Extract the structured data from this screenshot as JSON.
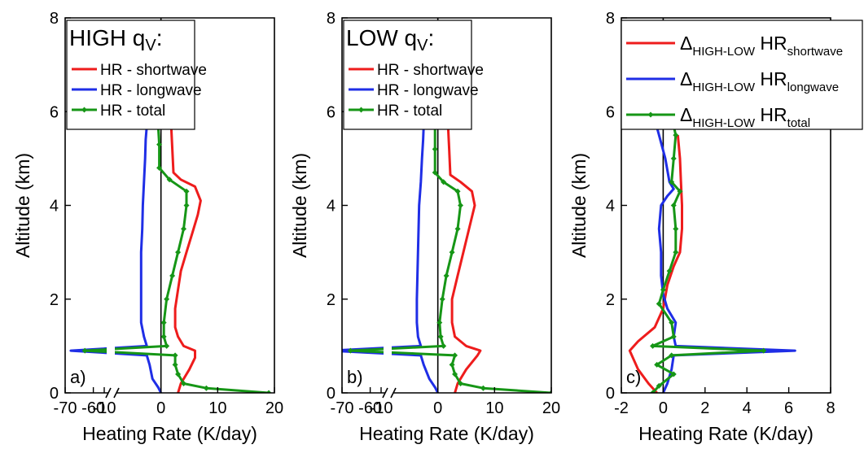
{
  "colors": {
    "shortwave": "#ee1c1c",
    "longwave": "#1f2ee6",
    "total": "#169616",
    "zero_line": "#000000"
  },
  "chart_data": [
    {
      "type": "line",
      "panel_label": "a)",
      "legend_title_main": "HIGH q",
      "legend_title_sub": "V",
      "legend_title_suffix": ":",
      "legend_title_color": "#1f2ee6",
      "legend_position": "top-left",
      "xlabel": "Heating Rate (K/day)",
      "ylabel": "Altitude (km)",
      "xlim": [
        -70,
        20
      ],
      "x_axis_break": [
        -57,
        -10
      ],
      "ylim": [
        0,
        8
      ],
      "xtick_labels": [
        "-70",
        "-60",
        "-10",
        "0",
        "10",
        "20"
      ],
      "ytick_labels": [
        "0",
        "2",
        "4",
        "6",
        "8"
      ],
      "grid": false,
      "series": [
        {
          "name": "HR - shortwave",
          "color": "#ee1c1c",
          "markers": false,
          "points": [
            [
              3,
              0
            ],
            [
              3.5,
              0.2
            ],
            [
              5,
              0.5
            ],
            [
              6,
              0.75
            ],
            [
              6,
              0.9
            ],
            [
              4,
              1.0
            ],
            [
              3,
              1.2
            ],
            [
              2.5,
              1.4
            ],
            [
              2.5,
              1.8
            ],
            [
              3,
              2.2
            ],
            [
              3.5,
              2.6
            ],
            [
              4.5,
              3.0
            ],
            [
              5.5,
              3.4
            ],
            [
              6.5,
              3.8
            ],
            [
              7,
              4.1
            ],
            [
              6,
              4.4
            ],
            [
              3.5,
              4.55
            ],
            [
              2.2,
              4.7
            ],
            [
              2,
              5.2
            ],
            [
              1.8,
              5.7
            ]
          ]
        },
        {
          "name": "HR - longwave",
          "color": "#1f2ee6",
          "markers": false,
          "points": [
            [
              0,
              0
            ],
            [
              -0.5,
              0.12
            ],
            [
              -1.5,
              0.3
            ],
            [
              -2,
              0.6
            ],
            [
              -2.5,
              0.8
            ],
            [
              -68,
              0.9
            ],
            [
              -2.5,
              1.0
            ],
            [
              -3,
              1.2
            ],
            [
              -3.5,
              1.5
            ],
            [
              -3.5,
              2.0
            ],
            [
              -3.5,
              2.5
            ],
            [
              -3.5,
              3.0
            ],
            [
              -3.3,
              3.5
            ],
            [
              -3.2,
              4.0
            ],
            [
              -3,
              4.5
            ],
            [
              -2.8,
              5.0
            ],
            [
              -2.7,
              5.4
            ],
            [
              -2.5,
              5.7
            ]
          ]
        },
        {
          "name": "HR - total",
          "color": "#169616",
          "markers": true,
          "points": [
            [
              19,
              0
            ],
            [
              8,
              0.1
            ],
            [
              4,
              0.2
            ],
            [
              3,
              0.4
            ],
            [
              2.5,
              0.6
            ],
            [
              2.5,
              0.8
            ],
            [
              -63,
              0.9
            ],
            [
              1,
              1.0
            ],
            [
              0.5,
              1.2
            ],
            [
              0.5,
              1.5
            ],
            [
              1,
              2.0
            ],
            [
              2,
              2.5
            ],
            [
              3,
              3.0
            ],
            [
              4,
              3.5
            ],
            [
              4.5,
              4.0
            ],
            [
              4.5,
              4.3
            ],
            [
              1.5,
              4.55
            ],
            [
              -0.3,
              4.8
            ],
            [
              -0.3,
              5.3
            ],
            [
              -0.5,
              5.7
            ]
          ]
        }
      ]
    },
    {
      "type": "line",
      "panel_label": "b)",
      "legend_title_main": "LOW q",
      "legend_title_sub": "V",
      "legend_title_suffix": ":",
      "legend_title_color": "#ee1c1c",
      "legend_position": "top-left",
      "xlabel": "Heating Rate (K/day)",
      "ylabel": "Altitude (km)",
      "xlim": [
        -70,
        20
      ],
      "x_axis_break": [
        -57,
        -10
      ],
      "ylim": [
        0,
        8
      ],
      "xtick_labels": [
        "-70",
        "-60",
        "-10",
        "0",
        "10",
        "20"
      ],
      "ytick_labels": [
        "0",
        "2",
        "4",
        "6",
        "8"
      ],
      "grid": false,
      "series": [
        {
          "name": "HR - shortwave",
          "color": "#ee1c1c",
          "markers": false,
          "points": [
            [
              3,
              0
            ],
            [
              3.5,
              0.2
            ],
            [
              5,
              0.5
            ],
            [
              7,
              0.8
            ],
            [
              7.5,
              0.9
            ],
            [
              5,
              1.0
            ],
            [
              3,
              1.2
            ],
            [
              2.5,
              1.5
            ],
            [
              2.5,
              2.0
            ],
            [
              3.5,
              2.5
            ],
            [
              4.5,
              3.0
            ],
            [
              5.5,
              3.5
            ],
            [
              6.5,
              4.0
            ],
            [
              6,
              4.3
            ],
            [
              4,
              4.5
            ],
            [
              2.2,
              4.65
            ],
            [
              2,
              5.2
            ],
            [
              1.8,
              5.7
            ]
          ]
        },
        {
          "name": "HR - longwave",
          "color": "#1f2ee6",
          "markers": false,
          "points": [
            [
              0,
              0
            ],
            [
              -0.5,
              0.12
            ],
            [
              -1.5,
              0.3
            ],
            [
              -2.5,
              0.6
            ],
            [
              -3,
              0.8
            ],
            [
              -74,
              0.9
            ],
            [
              -3,
              1.0
            ],
            [
              -3.5,
              1.2
            ],
            [
              -3.7,
              1.5
            ],
            [
              -3.7,
              2.0
            ],
            [
              -3.6,
              2.5
            ],
            [
              -3.5,
              3.0
            ],
            [
              -3.4,
              3.5
            ],
            [
              -3.3,
              4.0
            ],
            [
              -3,
              4.5
            ],
            [
              -2.8,
              5.0
            ],
            [
              -2.6,
              5.4
            ],
            [
              -2.5,
              5.7
            ]
          ]
        },
        {
          "name": "HR - total",
          "color": "#169616",
          "markers": true,
          "points": [
            [
              20,
              0
            ],
            [
              8,
              0.1
            ],
            [
              4,
              0.2
            ],
            [
              3,
              0.4
            ],
            [
              2.5,
              0.6
            ],
            [
              3,
              0.8
            ],
            [
              -67,
              0.9
            ],
            [
              1,
              1.0
            ],
            [
              0.5,
              1.2
            ],
            [
              0.3,
              1.5
            ],
            [
              0.8,
              2.0
            ],
            [
              1.5,
              2.5
            ],
            [
              2.5,
              3.0
            ],
            [
              3.5,
              3.5
            ],
            [
              4,
              4.0
            ],
            [
              3.5,
              4.3
            ],
            [
              1,
              4.5
            ],
            [
              -0.5,
              4.7
            ],
            [
              -0.5,
              5.2
            ],
            [
              -0.5,
              5.7
            ]
          ]
        }
      ]
    },
    {
      "type": "line",
      "panel_label": "c)",
      "legend_position": "top-right",
      "legend_prefix": "Δ",
      "legend_sub": "HIGH-LOW",
      "legend_main": "HR",
      "xlabel": "Heating Rate (K/day)",
      "ylabel": "Altitude (km)",
      "xlim": [
        -2,
        8
      ],
      "ylim": [
        0,
        8
      ],
      "xtick_labels": [
        "-2",
        "0",
        "2",
        "4",
        "6",
        "8"
      ],
      "ytick_labels": [
        "0",
        "2",
        "4",
        "6",
        "8"
      ],
      "grid": false,
      "series": [
        {
          "name": "shortwave",
          "color": "#ee1c1c",
          "markers": false,
          "points": [
            [
              -0.3,
              0
            ],
            [
              -0.7,
              0.2
            ],
            [
              -1.2,
              0.5
            ],
            [
              -1.6,
              0.9
            ],
            [
              -1.2,
              1.1
            ],
            [
              -0.4,
              1.4
            ],
            [
              0,
              1.8
            ],
            [
              0.2,
              2.3
            ],
            [
              0.5,
              2.7
            ],
            [
              0.8,
              3.0
            ],
            [
              0.9,
              3.5
            ],
            [
              0.9,
              4.0
            ],
            [
              0.85,
              4.5
            ],
            [
              0.8,
              5.0
            ],
            [
              0.7,
              5.5
            ]
          ]
        },
        {
          "name": "longwave",
          "color": "#1f2ee6",
          "markers": false,
          "points": [
            [
              0,
              0
            ],
            [
              0.2,
              0.2
            ],
            [
              0.4,
              0.5
            ],
            [
              0.5,
              0.8
            ],
            [
              6.3,
              0.9
            ],
            [
              0.6,
              1.0
            ],
            [
              0.5,
              1.2
            ],
            [
              0.6,
              1.5
            ],
            [
              0.2,
              1.8
            ],
            [
              0,
              2.1
            ],
            [
              -0.1,
              2.5
            ],
            [
              -0.1,
              3.0
            ],
            [
              -0.2,
              3.5
            ],
            [
              -0.1,
              4.0
            ],
            [
              0.2,
              4.2
            ],
            [
              0.5,
              4.35
            ],
            [
              0.3,
              4.5
            ],
            [
              0.1,
              5.0
            ],
            [
              -0.2,
              5.5
            ],
            [
              -0.5,
              6.0
            ]
          ]
        },
        {
          "name": "total",
          "color": "#169616",
          "markers": true,
          "points": [
            [
              -0.5,
              0
            ],
            [
              -0.2,
              0.15
            ],
            [
              0.5,
              0.4
            ],
            [
              -0.3,
              0.6
            ],
            [
              0.4,
              0.8
            ],
            [
              4.8,
              0.9
            ],
            [
              -0.5,
              1.0
            ],
            [
              0.5,
              1.2
            ],
            [
              0.4,
              1.5
            ],
            [
              -0.2,
              1.9
            ],
            [
              0,
              2.2
            ],
            [
              0.3,
              2.6
            ],
            [
              0.6,
              3.0
            ],
            [
              0.6,
              3.5
            ],
            [
              0.5,
              4.0
            ],
            [
              0.8,
              4.3
            ],
            [
              0.4,
              4.5
            ],
            [
              0.5,
              5.0
            ],
            [
              0.6,
              5.5
            ],
            [
              0.4,
              5.9
            ]
          ]
        }
      ]
    }
  ]
}
